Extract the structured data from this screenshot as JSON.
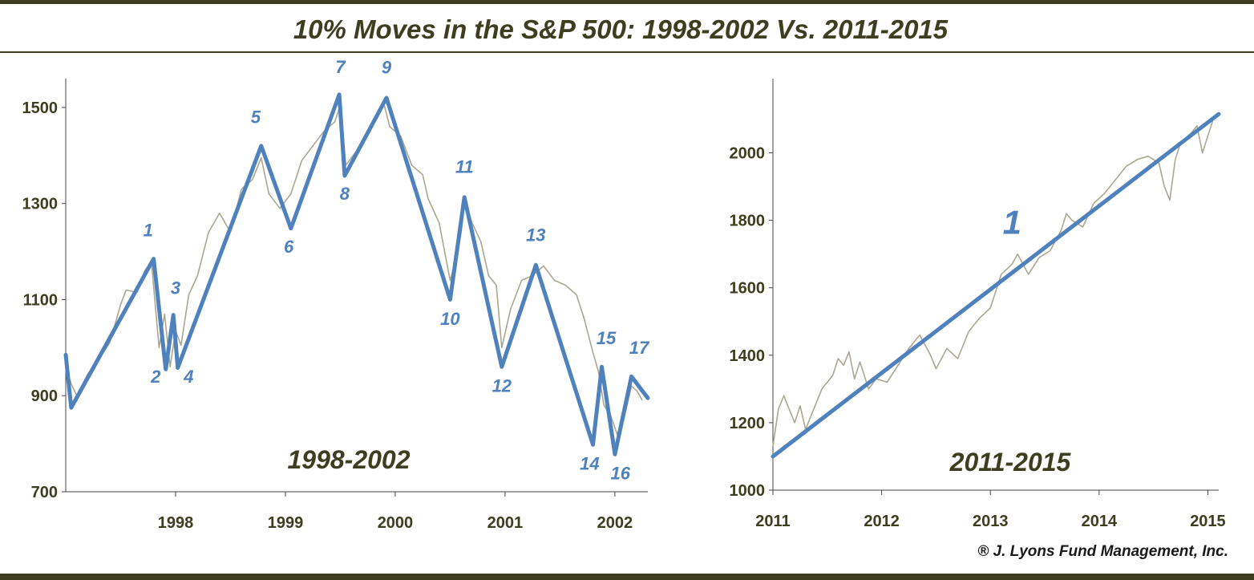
{
  "title": "10% Moves in the S&P 500:  1998-2002  Vs.  2011-2015",
  "credit": "® J. Lyons Fund Management, Inc.",
  "colors": {
    "frame": "#3d3d1f",
    "text": "#3d3d1f",
    "index_line": "#aaa791",
    "wave_line": "#4f81bd",
    "axis": "#444444"
  },
  "chart_data": [
    {
      "type": "line",
      "panel_label": "1998-2002",
      "ylim": [
        700,
        1560
      ],
      "yticks": [
        700,
        900,
        1100,
        1300,
        1500
      ],
      "xlim": [
        1997.0,
        2002.3
      ],
      "xticks": [
        {
          "label": "1998",
          "x": 1998.0
        },
        {
          "label": "1999",
          "x": 1999.0
        },
        {
          "label": "2000",
          "x": 2000.0
        },
        {
          "label": "2001",
          "x": 2001.0
        },
        {
          "label": "2002",
          "x": 2002.0
        }
      ],
      "series": [
        {
          "role": "S&P 500 index (approx.)",
          "points": [
            [
              1997.0,
              960
            ],
            [
              1997.05,
              925
            ],
            [
              1997.1,
              900
            ],
            [
              1997.2,
              945
            ],
            [
              1997.3,
              975
            ],
            [
              1997.4,
              1010
            ],
            [
              1997.5,
              1090
            ],
            [
              1997.55,
              1120
            ],
            [
              1997.65,
              1115
            ],
            [
              1997.72,
              1160
            ],
            [
              1997.78,
              1180
            ],
            [
              1997.85,
              1000
            ],
            [
              1997.9,
              1070
            ],
            [
              1997.95,
              960
            ],
            [
              1998.0,
              1035
            ],
            [
              1998.05,
              1005
            ],
            [
              1998.12,
              1110
            ],
            [
              1998.2,
              1150
            ],
            [
              1998.3,
              1240
            ],
            [
              1998.4,
              1280
            ],
            [
              1998.5,
              1240
            ],
            [
              1998.6,
              1330
            ],
            [
              1998.7,
              1350
            ],
            [
              1998.78,
              1395
            ],
            [
              1998.85,
              1320
            ],
            [
              1998.95,
              1290
            ],
            [
              1999.05,
              1320
            ],
            [
              1999.15,
              1390
            ],
            [
              1999.25,
              1420
            ],
            [
              1999.35,
              1450
            ],
            [
              1999.45,
              1470
            ],
            [
              1999.5,
              1505
            ],
            [
              1999.55,
              1380
            ],
            [
              1999.65,
              1410
            ],
            [
              1999.75,
              1450
            ],
            [
              1999.85,
              1490
            ],
            [
              1999.9,
              1505
            ],
            [
              1999.95,
              1460
            ],
            [
              2000.05,
              1440
            ],
            [
              2000.15,
              1380
            ],
            [
              2000.25,
              1360
            ],
            [
              2000.3,
              1310
            ],
            [
              2000.4,
              1260
            ],
            [
              2000.5,
              1140
            ],
            [
              2000.55,
              1180
            ],
            [
              2000.6,
              1240
            ],
            [
              2000.63,
              1300
            ],
            [
              2000.7,
              1260
            ],
            [
              2000.78,
              1220
            ],
            [
              2000.85,
              1150
            ],
            [
              2000.92,
              1130
            ],
            [
              2000.97,
              1000
            ],
            [
              2001.05,
              1080
            ],
            [
              2001.15,
              1140
            ],
            [
              2001.25,
              1150
            ],
            [
              2001.35,
              1170
            ],
            [
              2001.45,
              1140
            ],
            [
              2001.55,
              1130
            ],
            [
              2001.65,
              1110
            ],
            [
              2001.72,
              1060
            ],
            [
              2001.8,
              990
            ],
            [
              2001.85,
              950
            ],
            [
              2001.9,
              880
            ],
            [
              2001.96,
              860
            ],
            [
              2002.02,
              820
            ],
            [
              2002.08,
              850
            ],
            [
              2002.15,
              920
            ],
            [
              2002.2,
              910
            ],
            [
              2002.25,
              890
            ]
          ]
        },
        {
          "role": "10% moves (wave line)",
          "points": [
            [
              1997.0,
              985
            ],
            [
              1997.05,
              875
            ],
            [
              1997.8,
              1185
            ],
            [
              1997.91,
              955
            ],
            [
              1997.98,
              1068
            ],
            [
              1998.02,
              958
            ],
            [
              1998.78,
              1420
            ],
            [
              1999.05,
              1248
            ],
            [
              1999.49,
              1527
            ],
            [
              1999.54,
              1358
            ],
            [
              1999.92,
              1520
            ],
            [
              2000.5,
              1100
            ],
            [
              2000.63,
              1313
            ],
            [
              2000.97,
              960
            ],
            [
              2001.28,
              1172
            ],
            [
              2001.8,
              798
            ],
            [
              2001.88,
              960
            ],
            [
              2002.0,
              778
            ],
            [
              2002.15,
              940
            ],
            [
              2002.3,
              895
            ]
          ]
        }
      ],
      "wave_labels": [
        {
          "text": "1",
          "x": 1997.75,
          "y": 1232
        },
        {
          "text": "2",
          "x": 1997.82,
          "y": 927
        },
        {
          "text": "3",
          "x": 1998.0,
          "y": 1112
        },
        {
          "text": "4",
          "x": 1998.12,
          "y": 927
        },
        {
          "text": "5",
          "x": 1998.73,
          "y": 1467
        },
        {
          "text": "6",
          "x": 1999.03,
          "y": 1198
        },
        {
          "text": "7",
          "x": 1999.5,
          "y": 1572
        },
        {
          "text": "8",
          "x": 1999.54,
          "y": 1308
        },
        {
          "text": "9",
          "x": 1999.92,
          "y": 1571
        },
        {
          "text": "10",
          "x": 2000.5,
          "y": 1047
        },
        {
          "text": "11",
          "x": 2000.63,
          "y": 1364
        },
        {
          "text": "12",
          "x": 2000.97,
          "y": 908
        },
        {
          "text": "13",
          "x": 2001.28,
          "y": 1222
        },
        {
          "text": "14",
          "x": 2001.77,
          "y": 746
        },
        {
          "text": "15",
          "x": 2001.92,
          "y": 1007
        },
        {
          "text": "16",
          "x": 2002.05,
          "y": 726
        },
        {
          "text": "17",
          "x": 2002.22,
          "y": 987
        }
      ]
    },
    {
      "type": "line",
      "panel_label": "2011-2015",
      "ylim": [
        1000,
        2220
      ],
      "yticks": [
        1000,
        1200,
        1400,
        1600,
        1800,
        2000
      ],
      "xlim": [
        2011.0,
        2015.1
      ],
      "xticks": [
        {
          "label": "2011",
          "x": 2011.0
        },
        {
          "label": "2012",
          "x": 2012.0
        },
        {
          "label": "2013",
          "x": 2013.0
        },
        {
          "label": "2014",
          "x": 2014.0
        },
        {
          "label": "2015",
          "x": 2015.0
        }
      ],
      "series": [
        {
          "role": "S&P 500 index (approx.)",
          "points": [
            [
              2011.0,
              1130
            ],
            [
              2011.05,
              1240
            ],
            [
              2011.1,
              1280
            ],
            [
              2011.15,
              1240
            ],
            [
              2011.2,
              1200
            ],
            [
              2011.25,
              1250
            ],
            [
              2011.3,
              1180
            ],
            [
              2011.35,
              1220
            ],
            [
              2011.45,
              1300
            ],
            [
              2011.55,
              1340
            ],
            [
              2011.6,
              1390
            ],
            [
              2011.65,
              1370
            ],
            [
              2011.7,
              1410
            ],
            [
              2011.75,
              1330
            ],
            [
              2011.8,
              1380
            ],
            [
              2011.88,
              1300
            ],
            [
              2011.95,
              1330
            ],
            [
              2012.05,
              1320
            ],
            [
              2012.15,
              1370
            ],
            [
              2012.25,
              1420
            ],
            [
              2012.35,
              1460
            ],
            [
              2012.45,
              1400
            ],
            [
              2012.5,
              1360
            ],
            [
              2012.6,
              1420
            ],
            [
              2012.7,
              1390
            ],
            [
              2012.8,
              1470
            ],
            [
              2012.9,
              1510
            ],
            [
              2013.0,
              1540
            ],
            [
              2013.05,
              1590
            ],
            [
              2013.1,
              1640
            ],
            [
              2013.2,
              1670
            ],
            [
              2013.25,
              1700
            ],
            [
              2013.35,
              1640
            ],
            [
              2013.45,
              1690
            ],
            [
              2013.55,
              1710
            ],
            [
              2013.65,
              1770
            ],
            [
              2013.7,
              1820
            ],
            [
              2013.75,
              1800
            ],
            [
              2013.85,
              1780
            ],
            [
              2013.95,
              1850
            ],
            [
              2014.05,
              1880
            ],
            [
              2014.15,
              1920
            ],
            [
              2014.25,
              1960
            ],
            [
              2014.35,
              1980
            ],
            [
              2014.45,
              1990
            ],
            [
              2014.55,
              1970
            ],
            [
              2014.6,
              1900
            ],
            [
              2014.65,
              1860
            ],
            [
              2014.7,
              1980
            ],
            [
              2014.75,
              2030
            ],
            [
              2014.85,
              2060
            ],
            [
              2014.9,
              2080
            ],
            [
              2014.95,
              2000
            ],
            [
              2015.0,
              2050
            ],
            [
              2015.05,
              2100
            ],
            [
              2015.1,
              2110
            ]
          ]
        },
        {
          "role": "10% moves (wave line)",
          "points": [
            [
              2011.0,
              1100
            ],
            [
              2015.1,
              2115
            ]
          ]
        }
      ],
      "wave_labels": [
        {
          "text": "1",
          "x": 2013.2,
          "y": 1760,
          "big": true
        }
      ]
    }
  ]
}
